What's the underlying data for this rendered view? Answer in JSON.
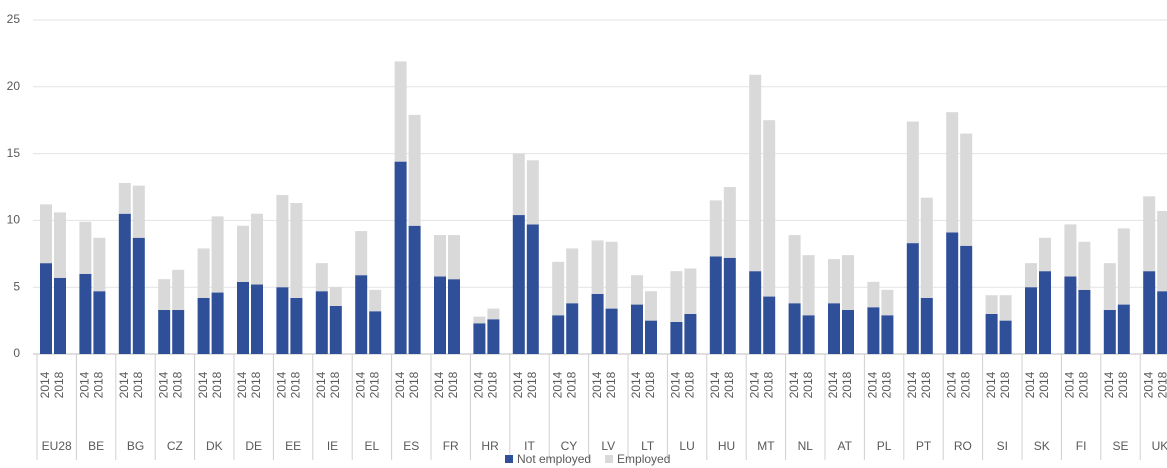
{
  "chart_data": {
    "type": "bar",
    "stacked": true,
    "groups": [
      "EU28",
      "BE",
      "BG",
      "CZ",
      "DK",
      "DE",
      "EE",
      "IE",
      "EL",
      "ES",
      "FR",
      "HR",
      "IT",
      "CY",
      "LV",
      "LT",
      "LU",
      "HU",
      "MT",
      "NL",
      "AT",
      "PL",
      "PT",
      "RO",
      "SI",
      "SK",
      "FI",
      "SE",
      "UK"
    ],
    "categories": [
      "2014",
      "2018",
      "2014",
      "2018",
      "2014",
      "2018",
      "2014",
      "2018",
      "2014",
      "2018",
      "2014",
      "2018",
      "2014",
      "2018",
      "2014",
      "2018",
      "2014",
      "2018",
      "2014",
      "2018",
      "2014",
      "2018",
      "2014",
      "2018",
      "2014",
      "2018",
      "2014",
      "2018",
      "2014",
      "2018",
      "2014",
      "2018",
      "2014",
      "2018",
      "2014",
      "2018",
      "2014",
      "2018",
      "2014",
      "2018",
      "2014",
      "2018",
      "2014",
      "2018",
      "2014",
      "2018",
      "2014",
      "2018",
      "2014",
      "2018",
      "2014",
      "2018",
      "2014",
      "2018",
      "2014",
      "2018",
      "2014",
      "2018"
    ],
    "series": [
      {
        "name": "Not employed",
        "color": "#2f4f98",
        "values": [
          6.8,
          5.7,
          6.0,
          4.7,
          10.5,
          8.7,
          3.3,
          3.3,
          4.2,
          4.6,
          5.4,
          5.2,
          5.0,
          4.2,
          4.7,
          3.6,
          5.9,
          3.2,
          14.4,
          9.6,
          5.8,
          5.6,
          2.3,
          2.6,
          10.4,
          9.7,
          2.9,
          3.8,
          4.5,
          3.4,
          3.7,
          2.5,
          2.4,
          3.0,
          7.3,
          7.2,
          6.2,
          4.3,
          3.8,
          2.9,
          3.8,
          3.3,
          3.5,
          2.9,
          8.3,
          4.2,
          9.1,
          8.1,
          3.0,
          2.5,
          5.0,
          6.2,
          5.8,
          4.8,
          3.3,
          3.7,
          6.2,
          4.7
        ]
      },
      {
        "name": "Employed",
        "color": "#d9d9d9",
        "values": [
          4.4,
          4.9,
          3.9,
          4.0,
          2.3,
          3.9,
          2.3,
          3.0,
          3.7,
          5.7,
          4.2,
          5.3,
          6.9,
          7.1,
          2.1,
          1.4,
          3.3,
          1.6,
          7.5,
          8.3,
          3.1,
          3.3,
          0.5,
          0.8,
          4.6,
          4.8,
          4.0,
          4.1,
          4.0,
          5.0,
          2.2,
          2.2,
          3.8,
          3.4,
          4.2,
          5.3,
          14.7,
          13.2,
          5.1,
          4.5,
          3.3,
          4.1,
          1.9,
          1.9,
          9.1,
          7.5,
          9.0,
          8.4,
          1.4,
          1.9,
          1.8,
          2.5,
          3.9,
          3.6,
          3.5,
          5.7,
          5.6,
          6.0
        ]
      }
    ],
    "ylim": [
      0,
      25
    ],
    "yticks": [
      0,
      5,
      10,
      15,
      20,
      25
    ],
    "grid": true,
    "legend": "bottom"
  }
}
